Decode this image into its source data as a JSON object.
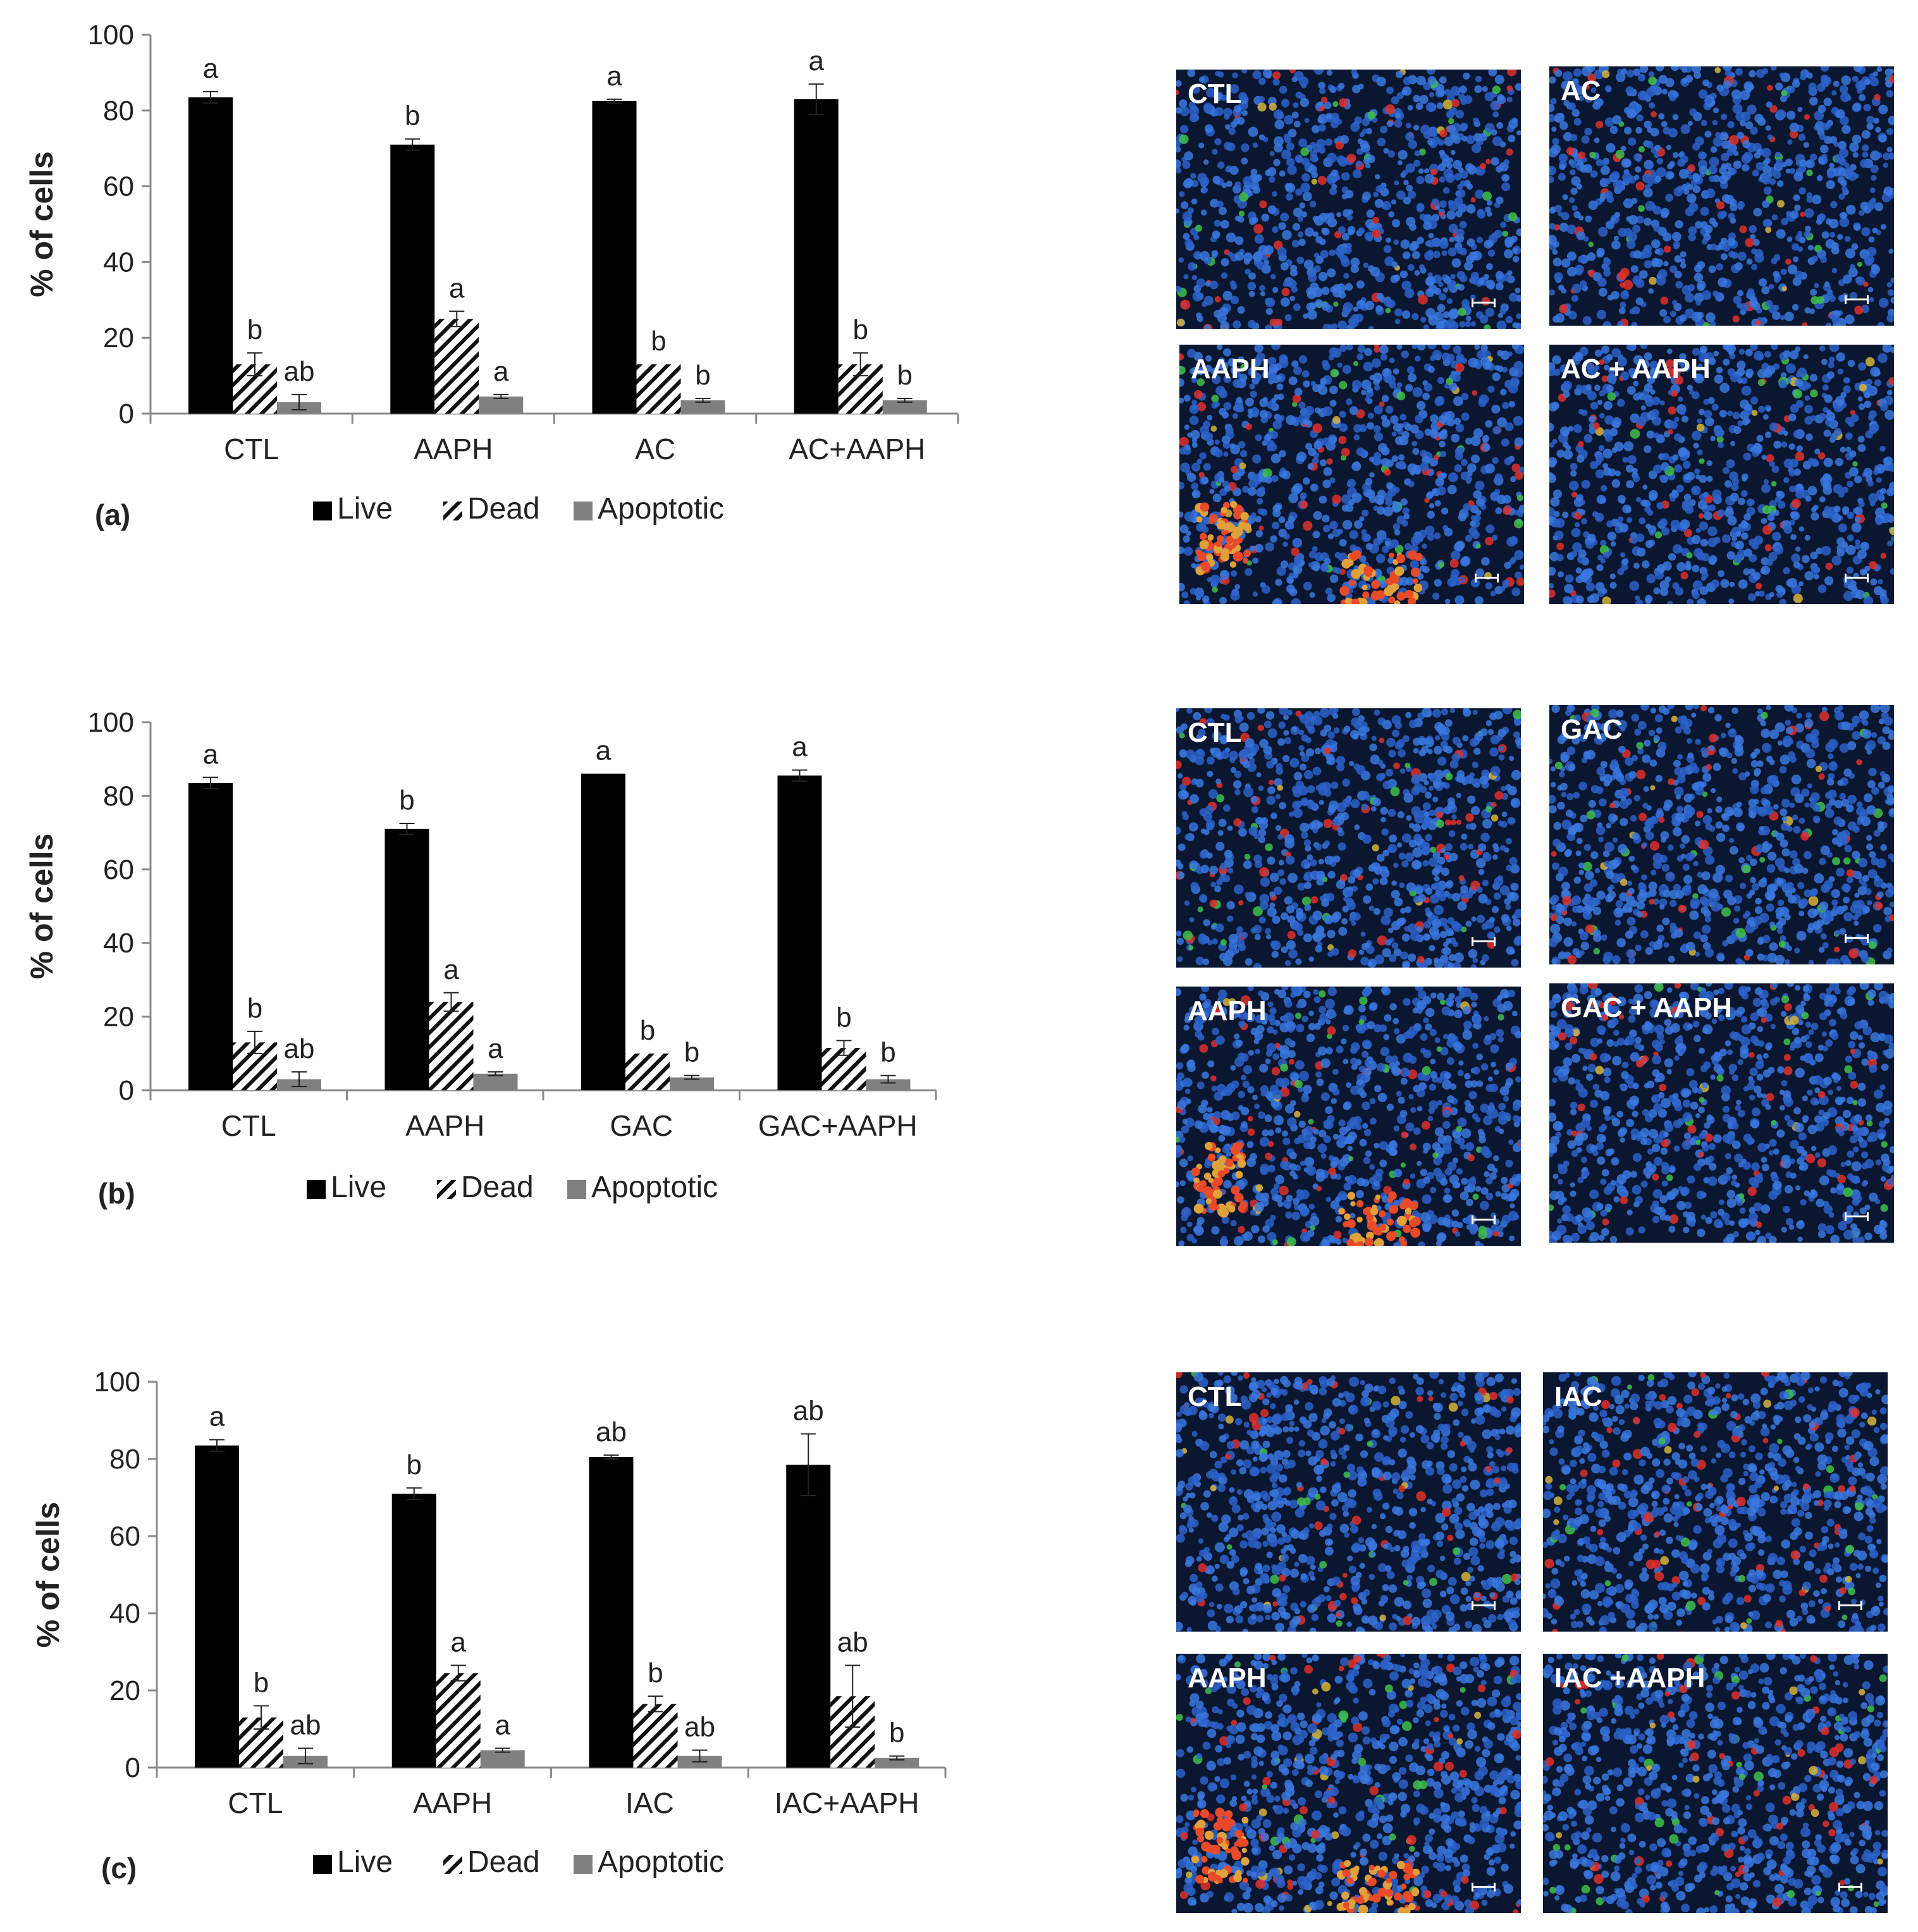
{
  "colors": {
    "live": "#000000",
    "dead_pattern": "#111111",
    "apoptotic": "#808080",
    "axis": "#8a8a8a"
  },
  "legend": [
    "Live",
    "Dead",
    "Apoptotic"
  ],
  "chart_data": [
    {
      "type": "bar",
      "panel": "(a)",
      "ylabel": "% of cells",
      "ylim": [
        0,
        100
      ],
      "yticks": [
        0,
        20,
        40,
        60,
        80,
        100
      ],
      "categories": [
        "CTL",
        "AAPH",
        "AC",
        "AC+AAPH"
      ],
      "series": [
        {
          "name": "Live",
          "values": [
            83.5,
            71,
            82.5,
            83
          ],
          "errors": [
            1.5,
            1.5,
            0.5,
            4
          ],
          "letters": [
            "a",
            "b",
            "a",
            "a"
          ]
        },
        {
          "name": "Dead",
          "values": [
            13,
            25,
            13,
            13
          ],
          "errors": [
            3,
            2,
            0,
            3
          ],
          "letters": [
            "b",
            "a",
            "b",
            "b"
          ]
        },
        {
          "name": "Apoptotic",
          "values": [
            3,
            4.5,
            3.5,
            3.5
          ],
          "errors": [
            2,
            0.5,
            0.5,
            0.5
          ],
          "letters": [
            "ab",
            "a",
            "b",
            "b"
          ]
        }
      ]
    },
    {
      "type": "bar",
      "panel": "(b)",
      "ylabel": "% of cells",
      "ylim": [
        0,
        100
      ],
      "yticks": [
        0,
        20,
        40,
        60,
        80,
        100
      ],
      "categories": [
        "CTL",
        "AAPH",
        "GAC",
        "GAC+AAPH"
      ],
      "series": [
        {
          "name": "Live",
          "values": [
            83.5,
            71,
            86,
            85.5
          ],
          "errors": [
            1.5,
            1.5,
            0,
            1.5
          ],
          "letters": [
            "a",
            "b",
            "a",
            "a"
          ]
        },
        {
          "name": "Dead",
          "values": [
            13,
            24,
            10,
            11.5
          ],
          "errors": [
            3,
            2.5,
            0,
            2
          ],
          "letters": [
            "b",
            "a",
            "b",
            "b"
          ]
        },
        {
          "name": "Apoptotic",
          "values": [
            3,
            4.5,
            3.5,
            3
          ],
          "errors": [
            2,
            0.5,
            0.5,
            1
          ],
          "letters": [
            "ab",
            "a",
            "b",
            "b"
          ]
        }
      ]
    },
    {
      "type": "bar",
      "panel": "(c)",
      "ylabel": "% of cells",
      "ylim": [
        0,
        100
      ],
      "yticks": [
        0,
        20,
        40,
        60,
        80,
        100
      ],
      "categories": [
        "CTL",
        "AAPH",
        "IAC",
        "IAC+AAPH"
      ],
      "series": [
        {
          "name": "Live",
          "values": [
            83.5,
            71,
            80.5,
            78.5
          ],
          "errors": [
            1.5,
            1.5,
            0.5,
            8
          ],
          "letters": [
            "a",
            "b",
            "ab",
            "ab"
          ]
        },
        {
          "name": "Dead",
          "values": [
            13,
            24.5,
            16.5,
            18.5
          ],
          "errors": [
            3,
            2,
            2,
            8
          ],
          "letters": [
            "b",
            "a",
            "b",
            "ab"
          ]
        },
        {
          "name": "Apoptotic",
          "values": [
            3,
            4.5,
            3,
            2.5
          ],
          "errors": [
            2,
            0.5,
            1.5,
            0.5
          ],
          "letters": [
            "ab",
            "a",
            "ab",
            "b"
          ]
        }
      ]
    }
  ],
  "micrographs": [
    {
      "label": "CTL"
    },
    {
      "label": "AC"
    },
    {
      "label": "AAPH"
    },
    {
      "label": "AC + AAPH"
    },
    {
      "label": "CTL"
    },
    {
      "label": "GAC"
    },
    {
      "label": "AAPH"
    },
    {
      "label": "GAC + AAPH"
    },
    {
      "label": "CTL"
    },
    {
      "label": "IAC"
    },
    {
      "label": "AAPH"
    },
    {
      "label": "IAC +AAPH"
    }
  ]
}
